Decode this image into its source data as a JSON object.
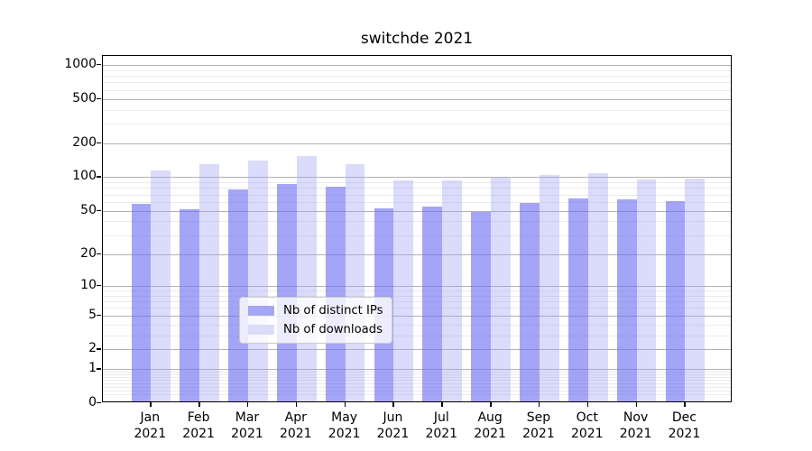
{
  "chart_data": {
    "type": "bar",
    "title": "switchde 2021",
    "scale": "log1p",
    "grid": true,
    "legend_position": "lower center",
    "year": "2021",
    "months": [
      "Jan",
      "Feb",
      "Mar",
      "Apr",
      "May",
      "Jun",
      "Jul",
      "Aug",
      "Sep",
      "Oct",
      "Nov",
      "Dec"
    ],
    "categories": [
      "Jan 2021",
      "Feb 2021",
      "Mar 2021",
      "Apr 2021",
      "May 2021",
      "Jun 2021",
      "Jul 2021",
      "Aug 2021",
      "Sep 2021",
      "Oct 2021",
      "Nov 2021",
      "Dec 2021"
    ],
    "series": [
      {
        "name": "Nb of distinct IPs",
        "fill": "rgba(109,109,242,0.62)",
        "flat_color": "#a6a6f6",
        "values": [
          55,
          50,
          75,
          84,
          79,
          51,
          52,
          47,
          57,
          62,
          61,
          59
        ]
      },
      {
        "name": "Nb of downloads",
        "fill": "rgba(160,160,245,0.38)",
        "flat_color": "#dbdbfa",
        "values": [
          110,
          126,
          136,
          148,
          126,
          90,
          90,
          95,
          100,
          104,
          92,
          93
        ]
      }
    ],
    "y_ticks": [
      1000,
      500,
      200,
      100,
      50,
      20,
      10,
      5,
      2,
      1,
      0
    ],
    "ylim": [
      0,
      1200
    ],
    "xlabel": "",
    "ylabel": "",
    "colors": {
      "major_grid": "#b2b2b2",
      "minor_grid": "#ebebeb",
      "axis": "#000000",
      "legend_border": "#cbcbcb"
    }
  }
}
